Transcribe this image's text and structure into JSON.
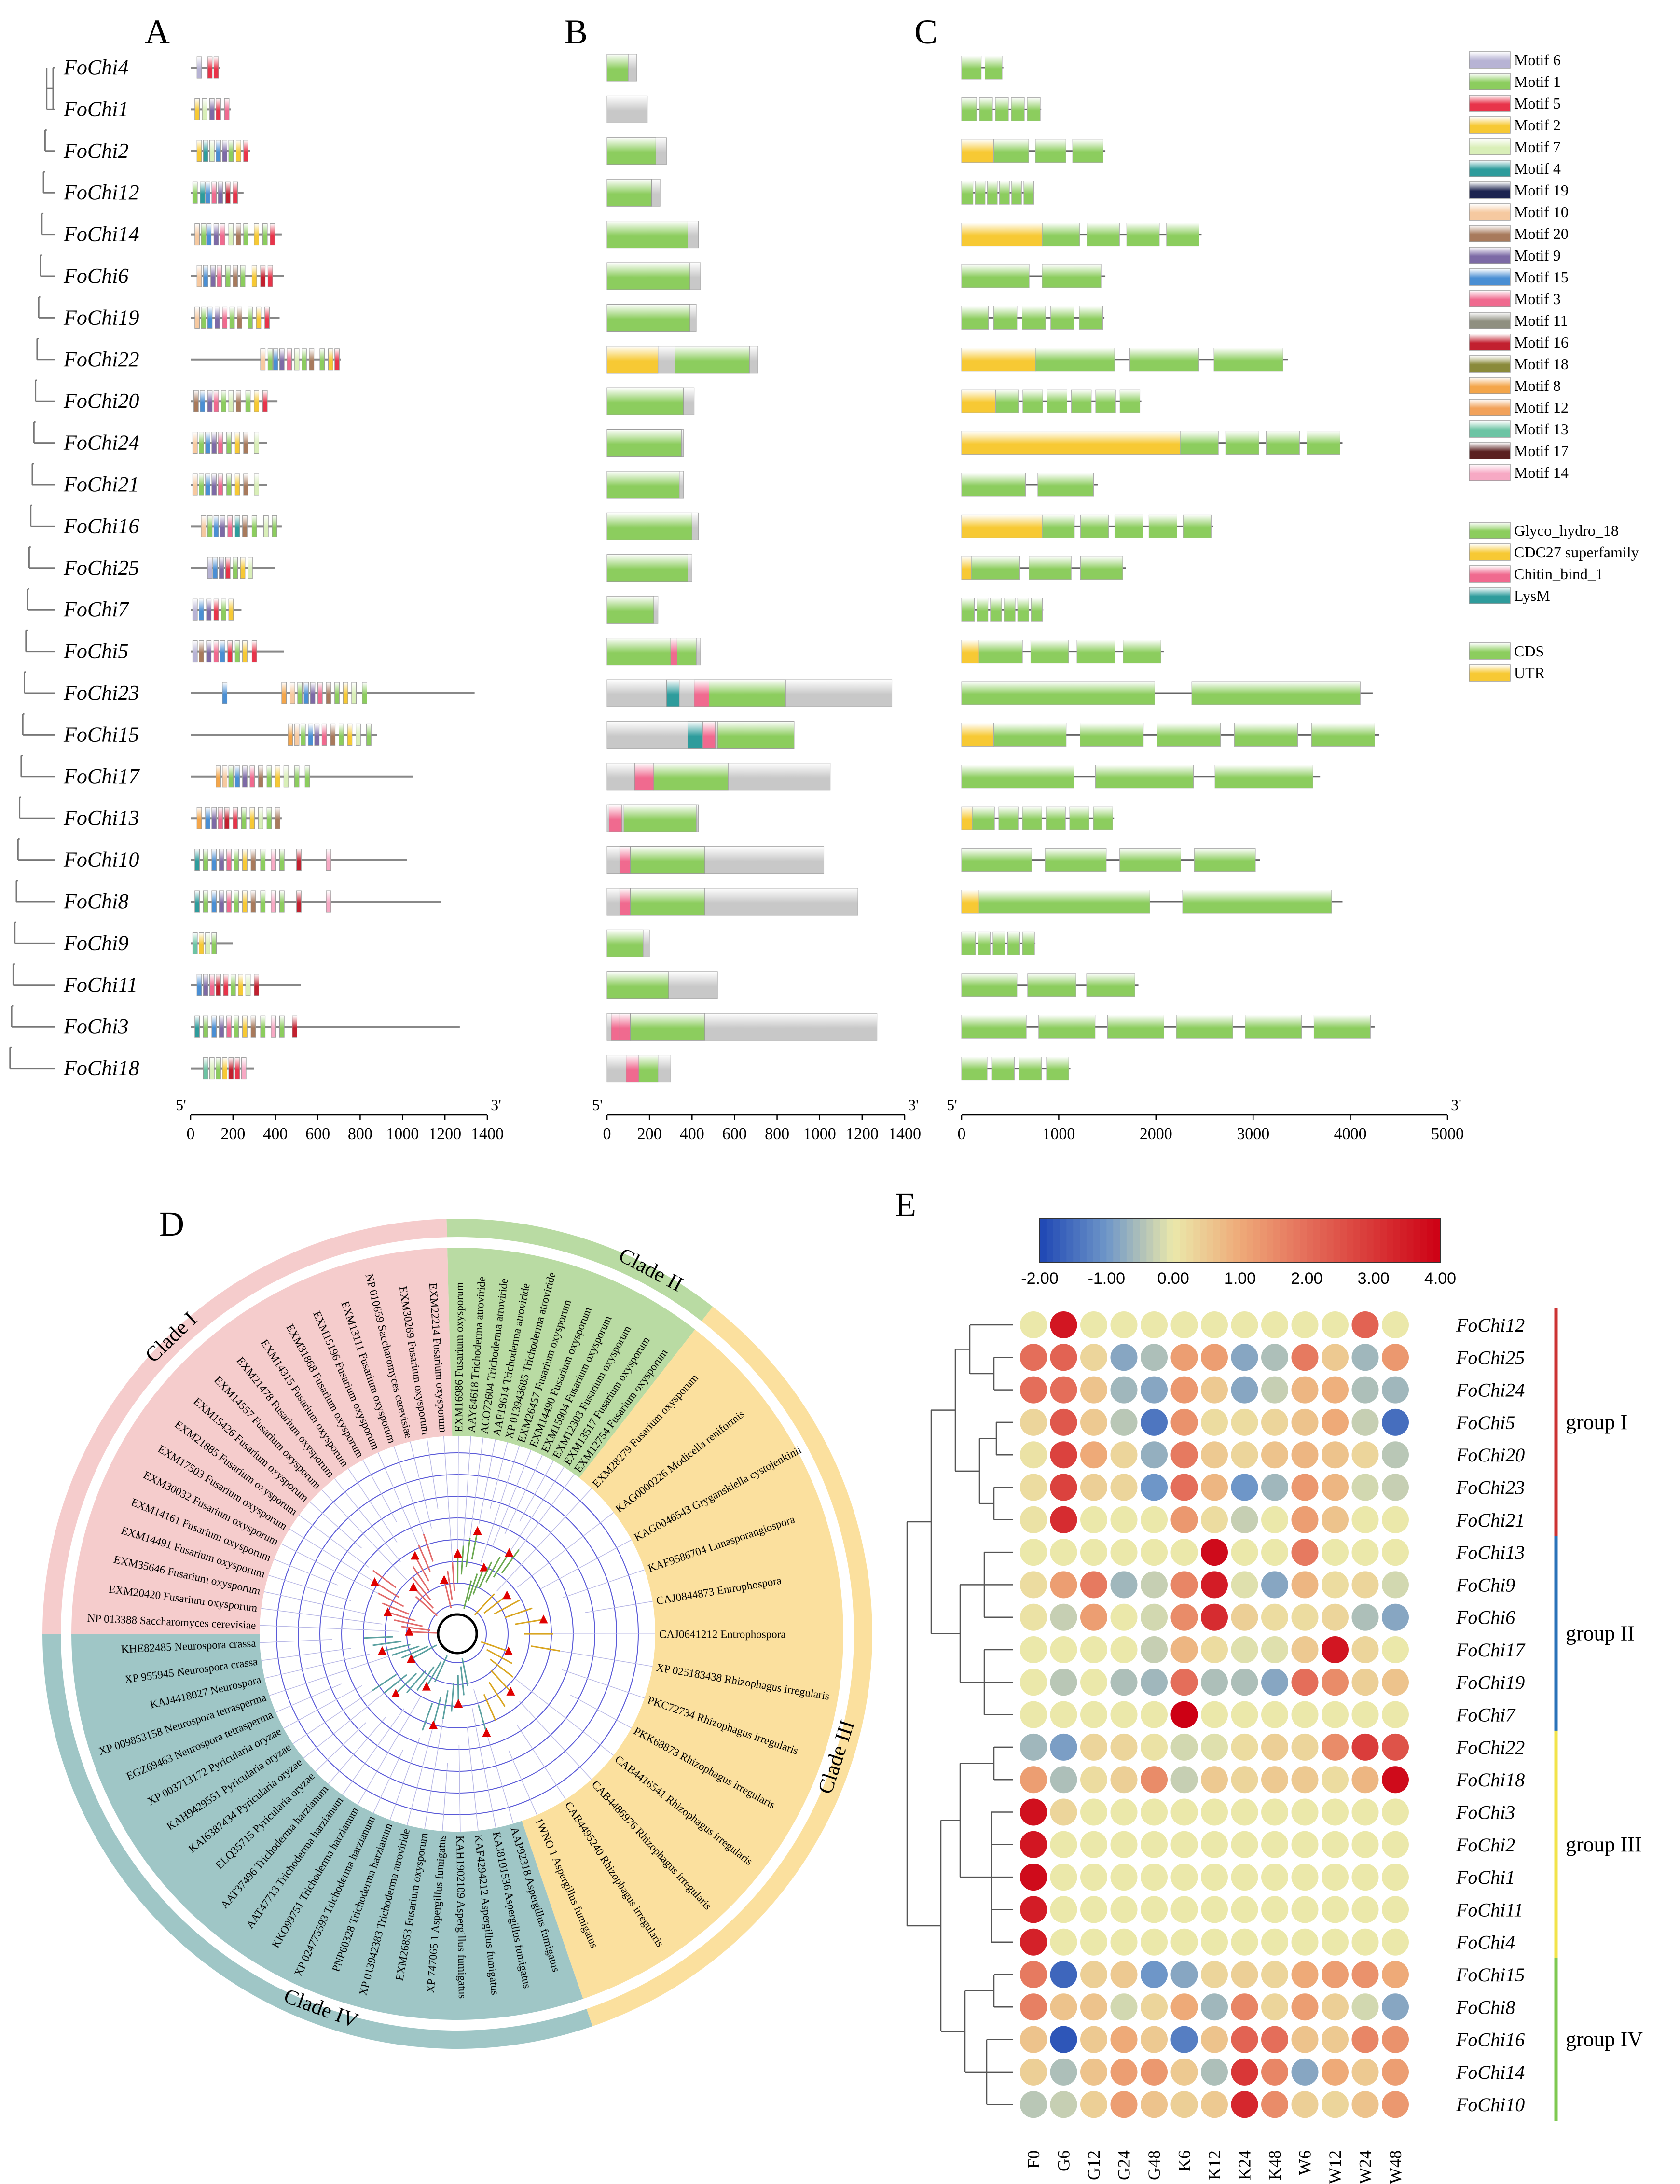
{
  "panels": {
    "a": "A",
    "b": "B",
    "c": "C",
    "d": "D",
    "e": "E"
  },
  "genes": [
    "FoChi4",
    "FoChi1",
    "FoChi2",
    "FoChi12",
    "FoChi14",
    "FoChi6",
    "FoChi19",
    "FoChi22",
    "FoChi20",
    "FoChi24",
    "FoChi21",
    "FoChi16",
    "FoChi25",
    "FoChi7",
    "FoChi5",
    "FoChi23",
    "FoChi15",
    "FoChi17",
    "FoChi13",
    "FoChi10",
    "FoChi8",
    "FoChi9",
    "FoChi11",
    "FoChi3",
    "FoChi18"
  ],
  "motif_legend": [
    "Motif 6",
    "Motif 1",
    "Motif 5",
    "Motif 2",
    "Motif 7",
    "Motif 4",
    "Motif 19",
    "Motif 10",
    "Motif 20",
    "Motif 9",
    "Motif 15",
    "Motif 3",
    "Motif 11",
    "Motif 16",
    "Motif 18",
    "Motif 8",
    "Motif 12",
    "Motif 13",
    "Motif 17",
    "Motif 14"
  ],
  "motif_colors": [
    "#b7b3d4",
    "#8ccd5e",
    "#e8344a",
    "#f7c934",
    "#d9efb8",
    "#2e9c9c",
    "#1d2450",
    "#f6c9a0",
    "#a87a5c",
    "#7d6aa6",
    "#4a8fd4",
    "#f06a8f",
    "#8f8f80",
    "#c2202f",
    "#8a8a3a",
    "#f4a64a",
    "#f2a25a",
    "#6cc4a4",
    "#5a2020",
    "#f7a9c4"
  ],
  "domain_legend": [
    "Glyco_hydro_18",
    "CDC27 superfamily",
    "Chitin_bind_1",
    "LysM"
  ],
  "domain_colors": [
    "#8ccd5e",
    "#f7c934",
    "#f06a8f",
    "#2e9c9c"
  ],
  "structure_legend": [
    "CDS",
    "UTR"
  ],
  "structure_colors": [
    "#8ccd5e",
    "#f7c934"
  ],
  "axis_a": {
    "ends": [
      "5'",
      "3'"
    ],
    "ticks": [
      "0",
      "200",
      "400",
      "600",
      "800",
      "1000",
      "1200",
      "1400"
    ],
    "max": 1400
  },
  "axis_b": {
    "ends": [
      "5'",
      "3'"
    ],
    "ticks": [
      "0",
      "200",
      "400",
      "600",
      "800",
      "1000",
      "1200",
      "1400"
    ],
    "max": 1400
  },
  "axis_c": {
    "ends": [
      "5'",
      "3'"
    ],
    "ticks": [
      "0",
      "1000",
      "2000",
      "3000",
      "4000",
      "5000"
    ],
    "max": 5000
  },
  "protein_lengths": [
    140,
    190,
    280,
    250,
    430,
    440,
    420,
    710,
    410,
    360,
    360,
    430,
    400,
    240,
    440,
    1340,
    880,
    1050,
    430,
    1020,
    1180,
    200,
    520,
    1270,
    300
  ],
  "gene_lengths": [
    430,
    820,
    1480,
    750,
    2470,
    1480,
    1470,
    3360,
    1850,
    3920,
    1400,
    2590,
    1690,
    840,
    2080,
    4230,
    4300,
    3690,
    1570,
    3070,
    3920,
    760,
    1820,
    4250,
    1120
  ],
  "chart_data": {
    "type": "heatmap",
    "title": "",
    "colorbar_ticks": [
      "-2.00",
      "-1.00",
      "0.00",
      "1.00",
      "2.00",
      "3.00",
      "4.00"
    ],
    "range": [
      -2,
      4
    ],
    "columns": [
      "F0",
      "G6",
      "G12",
      "G24",
      "G48",
      "K6",
      "K12",
      "K24",
      "K48",
      "W6",
      "W12",
      "W24",
      "W48"
    ],
    "rows": [
      "FoChi12",
      "FoChi25",
      "FoChi24",
      "FoChi5",
      "FoChi20",
      "FoChi23",
      "FoChi21",
      "FoChi13",
      "FoChi9",
      "FoChi6",
      "FoChi17",
      "FoChi19",
      "FoChi7",
      "FoChi22",
      "FoChi18",
      "FoChi3",
      "FoChi2",
      "FoChi1",
      "FoChi11",
      "FoChi4",
      "FoChi15",
      "FoChi8",
      "FoChi16",
      "FoChi14",
      "FoChi10"
    ],
    "values": [
      [
        0.0,
        3.6,
        0.0,
        0.0,
        0.0,
        0.0,
        0.0,
        0.0,
        0.0,
        0.0,
        0.0,
        2.2,
        0.0
      ],
      [
        2.0,
        2.2,
        0.3,
        -0.8,
        -0.5,
        1.2,
        1.2,
        -0.8,
        -0.5,
        1.8,
        0.5,
        -0.6,
        1.3
      ],
      [
        2.0,
        2.0,
        0.6,
        -0.6,
        -0.8,
        1.3,
        0.5,
        -0.8,
        -0.3,
        0.8,
        0.9,
        -0.5,
        -0.6
      ],
      [
        0.3,
        2.4,
        0.5,
        -0.4,
        -1.4,
        1.4,
        0.2,
        0.2,
        0.3,
        0.6,
        1.0,
        -0.3,
        -1.5
      ],
      [
        0.1,
        2.8,
        1.0,
        0.3,
        -0.7,
        1.8,
        0.5,
        0.3,
        0.6,
        0.8,
        0.6,
        0.3,
        -0.4
      ],
      [
        0.2,
        2.8,
        0.4,
        0.3,
        -1.0,
        2.0,
        0.8,
        -1.0,
        -0.6,
        1.3,
        0.8,
        -0.2,
        -0.3
      ],
      [
        0.1,
        3.2,
        0.0,
        0.0,
        0.0,
        1.3,
        0.2,
        -0.3,
        0.0,
        1.2,
        0.6,
        0.0,
        0.0
      ],
      [
        0.0,
        0.0,
        0.0,
        0.0,
        0.0,
        0.0,
        3.8,
        0.0,
        0.0,
        1.8,
        0.0,
        0.0,
        0.0
      ],
      [
        0.2,
        1.2,
        1.8,
        -0.6,
        -0.3,
        1.6,
        3.5,
        -0.1,
        -0.8,
        0.8,
        0.2,
        0.3,
        -0.2
      ],
      [
        0.1,
        -0.3,
        1.2,
        0.0,
        -0.2,
        1.5,
        3.2,
        0.4,
        0.2,
        0.2,
        0.3,
        -0.5,
        -0.8
      ],
      [
        0.0,
        0.0,
        0.0,
        0.0,
        -0.3,
        0.8,
        0.2,
        -0.1,
        -0.1,
        0.5,
        3.6,
        0.3,
        0.0
      ],
      [
        0.0,
        -0.4,
        0.0,
        -0.5,
        -0.6,
        2.0,
        -0.5,
        -0.5,
        -0.8,
        2.0,
        1.5,
        0.4,
        0.6
      ],
      [
        0.0,
        0.0,
        0.0,
        0.0,
        0.0,
        4.0,
        0.0,
        0.0,
        0.0,
        0.0,
        0.0,
        0.0,
        0.0
      ],
      [
        -0.6,
        -0.9,
        0.3,
        0.3,
        0.1,
        -0.2,
        -0.1,
        0.2,
        0.4,
        0.3,
        1.5,
        2.9,
        2.5
      ],
      [
        1.2,
        -0.5,
        0.2,
        0.4,
        1.5,
        -0.3,
        0.5,
        0.3,
        0.5,
        0.5,
        0.2,
        0.8,
        3.8
      ],
      [
        3.7,
        0.3,
        0.0,
        0.0,
        0.0,
        0.0,
        0.0,
        0.0,
        0.0,
        0.0,
        0.0,
        0.0,
        0.0
      ],
      [
        3.6,
        0.0,
        0.0,
        0.0,
        0.0,
        0.0,
        0.0,
        0.0,
        0.0,
        0.0,
        0.0,
        0.0,
        0.0
      ],
      [
        3.8,
        0.0,
        0.0,
        0.0,
        0.0,
        0.0,
        0.0,
        0.0,
        0.0,
        0.0,
        0.0,
        0.0,
        0.0
      ],
      [
        3.5,
        0.0,
        0.0,
        0.0,
        0.0,
        0.0,
        0.0,
        0.0,
        0.0,
        0.0,
        0.0,
        0.0,
        0.0
      ],
      [
        3.4,
        0.0,
        0.0,
        0.0,
        0.0,
        0.0,
        0.0,
        0.0,
        0.0,
        0.0,
        0.0,
        0.0,
        0.0
      ],
      [
        1.8,
        -1.6,
        0.4,
        0.5,
        -1.0,
        -0.8,
        0.3,
        0.4,
        0.3,
        1.0,
        1.2,
        1.4,
        1.0
      ],
      [
        1.7,
        0.6,
        0.6,
        -0.2,
        0.3,
        1.0,
        -0.6,
        1.6,
        0.3,
        1.2,
        0.4,
        -0.2,
        -0.8
      ],
      [
        0.6,
        -1.8,
        0.5,
        1.0,
        0.5,
        -1.3,
        0.6,
        2.2,
        2.0,
        0.6,
        0.5,
        1.6,
        1.4
      ],
      [
        0.4,
        -0.5,
        0.6,
        1.2,
        1.3,
        0.5,
        -0.5,
        3.0,
        1.6,
        -0.8,
        1.0,
        0.5,
        1.2
      ],
      [
        -0.4,
        -0.3,
        0.4,
        1.2,
        0.6,
        0.4,
        0.5,
        3.3,
        1.5,
        0.4,
        0.3,
        0.6,
        1.3
      ]
    ]
  },
  "heatmap_groups": [
    {
      "label": "group I",
      "color": "#cc3333"
    },
    {
      "label": "group II",
      "color": "#2a72b8"
    },
    {
      "label": "group III",
      "color": "#f2e34a"
    },
    {
      "label": "group IV",
      "color": "#7ec850"
    }
  ],
  "tree_d": {
    "clades": [
      {
        "label": "Clade I",
        "color": "#f5cccc"
      },
      {
        "label": "Clade II",
        "color": "#b9dba3"
      },
      {
        "label": "Clade III",
        "color": "#fbe09e"
      },
      {
        "label": "Clade IV",
        "color": "#9fc6c6"
      }
    ],
    "clade_i_leaves": [
      "NP 013388 Saccharomyces cerevisiae",
      "EXM20420 Fusarium oxysporum",
      "EXM35646 Fusarium oxysporum",
      "EXM14491 Fusarium oxysporum",
      "EXM14161 Fusarium oxysporum",
      "EXM30032 Fusarium oxysporum",
      "EXM17503 Fusarium oxysporum",
      "EXM21885 Fusarium oxysporum",
      "EXM15426 Fusarium oxysporum",
      "EXM14557 Fusarium oxysporum",
      "EXM21478 Fusarium oxysporum",
      "EXM14315 Fusarium oxysporum",
      "EXM31868 Fusarium oxysporum",
      "EXM15196 Fusarium oxysporum",
      "EXM13111 Fusarium oxysporum",
      "NP 010659 Saccharomyces cerevisiae",
      "EXM30269 Fusarium oxysporum",
      "EXM22214 Fusarium oxysporum"
    ],
    "clade_ii_leaves": [
      "EXM16986 Fusarium oxysporum",
      "AAY84618 Trichoderma atroviride",
      "ACO72604 Trichoderma atroviride",
      "AAF19614 Trichoderma atroviride",
      "XP 013943685 Trichoderma atroviride",
      "EXM26457 Fusarium oxysporum",
      "EXM14490 Fusarium oxysporum",
      "EXM15904 Fusarium oxysporum",
      "EXM12303 Fusarium oxysporum",
      "EXM13517 Fusarium oxysporum",
      "EXM12754 Fusarium oxysporum"
    ],
    "clade_iii_leaves": [
      "EXM28279 Fusarium oxysporum",
      "KAG0000226 Modicella reniformis",
      "KAG0046543 Gryganskiella cystojenkinii",
      "KAF9586704 Lunasporangiospora",
      "CAJ0844873 Entrophospora",
      "CAJ0641212 Entrophospora",
      "XP 025183438 Rhizophagus irregularis",
      "PKC72734 Rhizophagus irregularis",
      "PKK68873 Rhizophagus irregularis",
      "CAB4416541 Rhizophagus irregularis",
      "CAB4486976 Rhizophagus irregularis",
      "CAB4495240 Rhizophagus irregularis",
      "1WNO 1 Aspergillus fumigatus"
    ],
    "clade_iv_leaves": [
      "AAP92318 Aspergillus fumigatus",
      "KAJ8101536 Aspergillus fumigatus",
      "KAF4294212 Aspergillus fumigatus",
      "KAH1902109 Aspergillus fumigatus",
      "XP 747065 1 Aspergillus fumigatus",
      "EXM26853 Fusarium oxysporum",
      "XP 013942383 Trichoderma atroviride",
      "PNP60328 Trichoderma harzianum",
      "XP 024775593 Trichoderma harzianum",
      "KKO99751 Trichoderma harzianum",
      "AAT47713 Trichoderma harzianum",
      "AAT37496 Trichoderma harzianum",
      "ELQ35715 Pyricularia oryzae",
      "KAI6387434 Pyricularia oryzae",
      "KAH9429551 Pyricularia oryzae",
      "XP 003713172 Pyricularia oryzae",
      "EGZ69463 Neurospora tetrasperma",
      "XP 009853158 Neurospora tetrasperma",
      "KAJ4418027 Neurospora",
      "XP 955945 Neurospora crassa",
      "KHE82485 Neurospora crassa"
    ]
  }
}
